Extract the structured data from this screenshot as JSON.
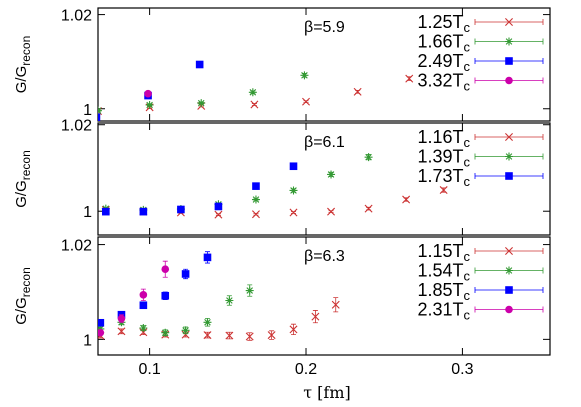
{
  "chart_data": {
    "type": "scatter",
    "xlabel": "τ [fm]",
    "x_ticks": [
      {
        "v": 0.1,
        "label": "0.1"
      },
      {
        "v": 0.2,
        "label": "0.2"
      },
      {
        "v": 0.3,
        "label": "0.3"
      }
    ],
    "xlim": [
      0.067,
      0.356
    ],
    "panels": [
      {
        "id": "b59",
        "beta_label": "β=5.9",
        "ylabel": "G/G",
        "ylabel_sub": "recon",
        "ylim": [
          0.9974,
          1.0214
        ],
        "y_ticks": [
          {
            "v": 1.0,
            "label": "1"
          },
          {
            "v": 1.02,
            "label": "1.02"
          }
        ],
        "series": [
          {
            "name": "1.25",
            "subscript": "c",
            "color": "#cc3333",
            "marker": "x",
            "points": [
              [
                0.067,
                0.9995,
                0.0002
              ],
              [
                0.1,
                1.0003,
                0.0002
              ],
              [
                0.133,
                1.0006,
                0.0002
              ],
              [
                0.167,
                1.0009,
                0.0002
              ],
              [
                0.2,
                1.0015,
                0.0002
              ],
              [
                0.233,
                1.0036,
                0.0003
              ],
              [
                0.266,
                1.0064,
                0.0004
              ]
            ]
          },
          {
            "name": "1.66",
            "subscript": "c",
            "color": "#339933",
            "marker": "star",
            "points": [
              [
                0.067,
                0.9996,
                0.0002
              ],
              [
                0.1,
                1.0008,
                0.0002
              ],
              [
                0.133,
                1.0012,
                0.0002
              ],
              [
                0.166,
                1.0035,
                0.0003
              ],
              [
                0.199,
                1.0071,
                0.0004
              ]
            ]
          },
          {
            "name": "2.49",
            "subscript": "c",
            "color": "#0000ff",
            "marker": "square",
            "points": [
              [
                0.066,
                0.9982,
                0.0002
              ],
              [
                0.099,
                1.0028,
                0.0002
              ],
              [
                0.132,
                1.0094,
                0.0003
              ]
            ]
          },
          {
            "name": "3.32",
            "subscript": "c",
            "color": "#cc00aa",
            "marker": "circle",
            "points": [
              [
                0.099,
                1.0032,
                0.0002
              ]
            ]
          }
        ]
      },
      {
        "id": "b61",
        "beta_label": "β=6.1",
        "ylabel": "G/G",
        "ylabel_sub": "recon",
        "ylim": [
          0.9945,
          1.0204
        ],
        "y_ticks": [
          {
            "v": 1.0,
            "label": "1"
          },
          {
            "v": 1.02,
            "label": "1.02"
          }
        ],
        "series": [
          {
            "name": "1.16",
            "subscript": "c",
            "color": "#cc3333",
            "marker": "x",
            "points": [
              [
                0.072,
                1.0003,
                0.0002
              ],
              [
                0.096,
                0.9999,
                0.0002
              ],
              [
                0.12,
                0.9997,
                0.0002
              ],
              [
                0.144,
                0.9992,
                0.0002
              ],
              [
                0.168,
                0.9993,
                0.0002
              ],
              [
                0.192,
                0.9997,
                0.0002
              ],
              [
                0.216,
                0.9999,
                0.0002
              ],
              [
                0.24,
                1.0006,
                0.0003
              ],
              [
                0.264,
                1.0027,
                0.0004
              ],
              [
                0.288,
                1.0049,
                0.0005
              ]
            ]
          },
          {
            "name": "1.39",
            "subscript": "c",
            "color": "#339933",
            "marker": "star",
            "points": [
              [
                0.072,
                1.0006,
                0.0002
              ],
              [
                0.096,
                1.0003,
                0.0002
              ],
              [
                0.12,
                1.0005,
                0.0002
              ],
              [
                0.144,
                1.0016,
                0.0003
              ],
              [
                0.168,
                1.0027,
                0.0003
              ],
              [
                0.192,
                1.0048,
                0.0004
              ],
              [
                0.216,
                1.0085,
                0.0005
              ],
              [
                0.24,
                1.0125,
                0.0006
              ]
            ]
          },
          {
            "name": "1.73",
            "subscript": "c",
            "color": "#0000ff",
            "marker": "square",
            "points": [
              [
                0.072,
                0.9999,
                0.0002
              ],
              [
                0.096,
                0.9999,
                0.0002
              ],
              [
                0.12,
                1.0004,
                0.0002
              ],
              [
                0.144,
                1.0011,
                0.0003
              ],
              [
                0.168,
                1.0058,
                0.0003
              ],
              [
                0.192,
                1.0104,
                0.0004
              ]
            ]
          }
        ]
      },
      {
        "id": "b63",
        "beta_label": "β=6.3",
        "ylabel": "G/G",
        "ylabel_sub": "recon",
        "ylim": [
          0.9967,
          1.0216
        ],
        "y_ticks": [
          {
            "v": 1.0,
            "label": "1"
          },
          {
            "v": 1.02,
            "label": "1.02"
          }
        ],
        "series": [
          {
            "name": "1.15",
            "subscript": "c",
            "color": "#cc3333",
            "marker": "x",
            "points": [
              [
                0.0685,
                1.0008,
                0.0005
              ],
              [
                0.082,
                1.0017,
                0.0005
              ],
              [
                0.096,
                1.0015,
                0.0005
              ],
              [
                0.11,
                1.001,
                0.0005
              ],
              [
                0.123,
                1.001,
                0.0005
              ],
              [
                0.137,
                1.0009,
                0.0006
              ],
              [
                0.151,
                1.0008,
                0.0007
              ],
              [
                0.164,
                1.0006,
                0.0008
              ],
              [
                0.178,
                1.0009,
                0.0009
              ],
              [
                0.192,
                1.0021,
                0.0011
              ],
              [
                0.206,
                1.0048,
                0.0013
              ],
              [
                0.219,
                1.0073,
                0.0015
              ]
            ]
          },
          {
            "name": "1.54",
            "subscript": "c",
            "color": "#339933",
            "marker": "star",
            "points": [
              [
                0.0685,
                1.0022,
                0.0004
              ],
              [
                0.082,
                1.0036,
                0.0005
              ],
              [
                0.096,
                1.0024,
                0.0005
              ],
              [
                0.11,
                1.0014,
                0.0006
              ],
              [
                0.123,
                1.0019,
                0.0007
              ],
              [
                0.137,
                1.0036,
                0.0008
              ],
              [
                0.151,
                1.0082,
                0.001
              ],
              [
                0.164,
                1.0103,
                0.0012
              ]
            ]
          },
          {
            "name": "1.85",
            "subscript": "c",
            "color": "#0000ff",
            "marker": "square",
            "points": [
              [
                0.0685,
                1.0035,
                0.0004
              ],
              [
                0.082,
                1.0052,
                0.0005
              ],
              [
                0.096,
                1.0072,
                0.0006
              ],
              [
                0.11,
                1.0092,
                0.0008
              ],
              [
                0.123,
                1.0138,
                0.001
              ],
              [
                0.137,
                1.0173,
                0.0012
              ]
            ]
          },
          {
            "name": "2.31",
            "subscript": "c",
            "color": "#cc00aa",
            "marker": "circle",
            "points": [
              [
                0.0685,
                1.0014,
                0.0005
              ],
              [
                0.082,
                1.0044,
                0.0008
              ],
              [
                0.096,
                1.0094,
                0.0012
              ],
              [
                0.11,
                1.0148,
                0.0017
              ]
            ]
          }
        ]
      }
    ]
  }
}
